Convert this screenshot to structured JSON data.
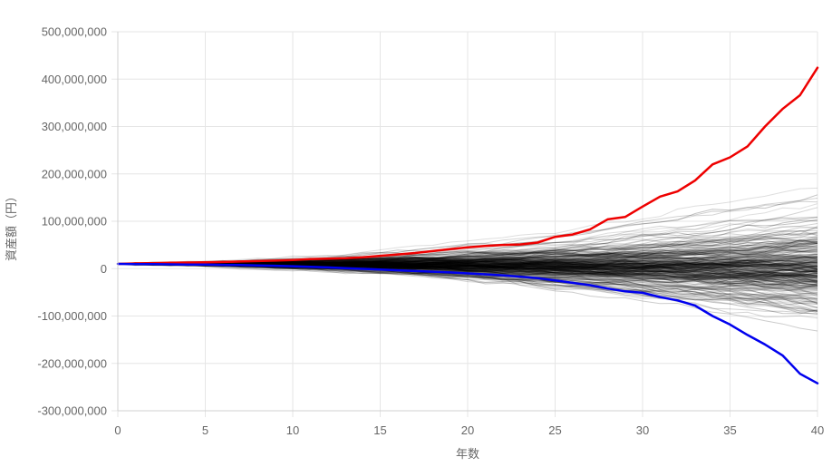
{
  "chart_data": {
    "type": "line",
    "title": "",
    "xlabel": "年数",
    "ylabel": "資産額（円）",
    "xlim": [
      0,
      40
    ],
    "ylim": [
      -300000000,
      500000000
    ],
    "x_ticks": [
      0,
      5,
      10,
      15,
      20,
      25,
      30,
      35,
      40
    ],
    "x_tick_labels": [
      "0",
      "5",
      "10",
      "15",
      "20",
      "25",
      "30",
      "35",
      "40"
    ],
    "y_ticks": [
      500000000,
      400000000,
      300000000,
      200000000,
      100000000,
      0,
      -100000000,
      -200000000,
      -300000000
    ],
    "y_tick_labels": [
      "500,000,000",
      "400,000,000",
      "300,000,000",
      "200,000,000",
      "100,000,000",
      "0",
      "-100,000,000",
      "-200,000,000",
      "-300,000,000"
    ],
    "grid": true,
    "legend": "none",
    "x": [
      0,
      1,
      2,
      3,
      4,
      5,
      6,
      7,
      8,
      9,
      10,
      11,
      12,
      13,
      14,
      15,
      16,
      17,
      18,
      19,
      20,
      21,
      22,
      23,
      24,
      25,
      26,
      27,
      28,
      29,
      30,
      31,
      32,
      33,
      34,
      35,
      36,
      37,
      38,
      39,
      40
    ],
    "series": [
      {
        "color": "#ee0000",
        "role": "max",
        "values": [
          10000000,
          11000000,
          11500000,
          12500000,
          13000000,
          13500000,
          14000000,
          15000000,
          16000000,
          17000000,
          18000000,
          20000000,
          21000000,
          22000000,
          24000000,
          27000000,
          30000000,
          33000000,
          37000000,
          41000000,
          45000000,
          48000000,
          50000000,
          51000000,
          55000000,
          67000000,
          72000000,
          83000000,
          104000000,
          109000000,
          131000000,
          152000000,
          163000000,
          186000000,
          220000000,
          235000000,
          258000000,
          300000000,
          337000000,
          366000000,
          424000000
        ]
      },
      {
        "color": "#0000ee",
        "role": "min",
        "values": [
          10000000,
          9700000,
          9400000,
          9100000,
          8800000,
          8500000,
          8000000,
          7500000,
          6800000,
          6000000,
          5000000,
          4000000,
          2500000,
          1000000,
          -500000,
          -2000000,
          -3500000,
          -5000000,
          -6500000,
          -8000000,
          -10000000,
          -12000000,
          -14000000,
          -17000000,
          -20000000,
          -25000000,
          -30000000,
          -35000000,
          -42000000,
          -48000000,
          -51000000,
          -60000000,
          -67000000,
          -78000000,
          -100000000,
          -118000000,
          -140000000,
          -160000000,
          -183000000,
          -222000000,
          -242000000
        ]
      }
    ],
    "simulation_paths": {
      "color": "#000000",
      "count": 300,
      "start_value": 10000000,
      "final_value_range": [
        -235000000,
        400000000
      ]
    }
  }
}
